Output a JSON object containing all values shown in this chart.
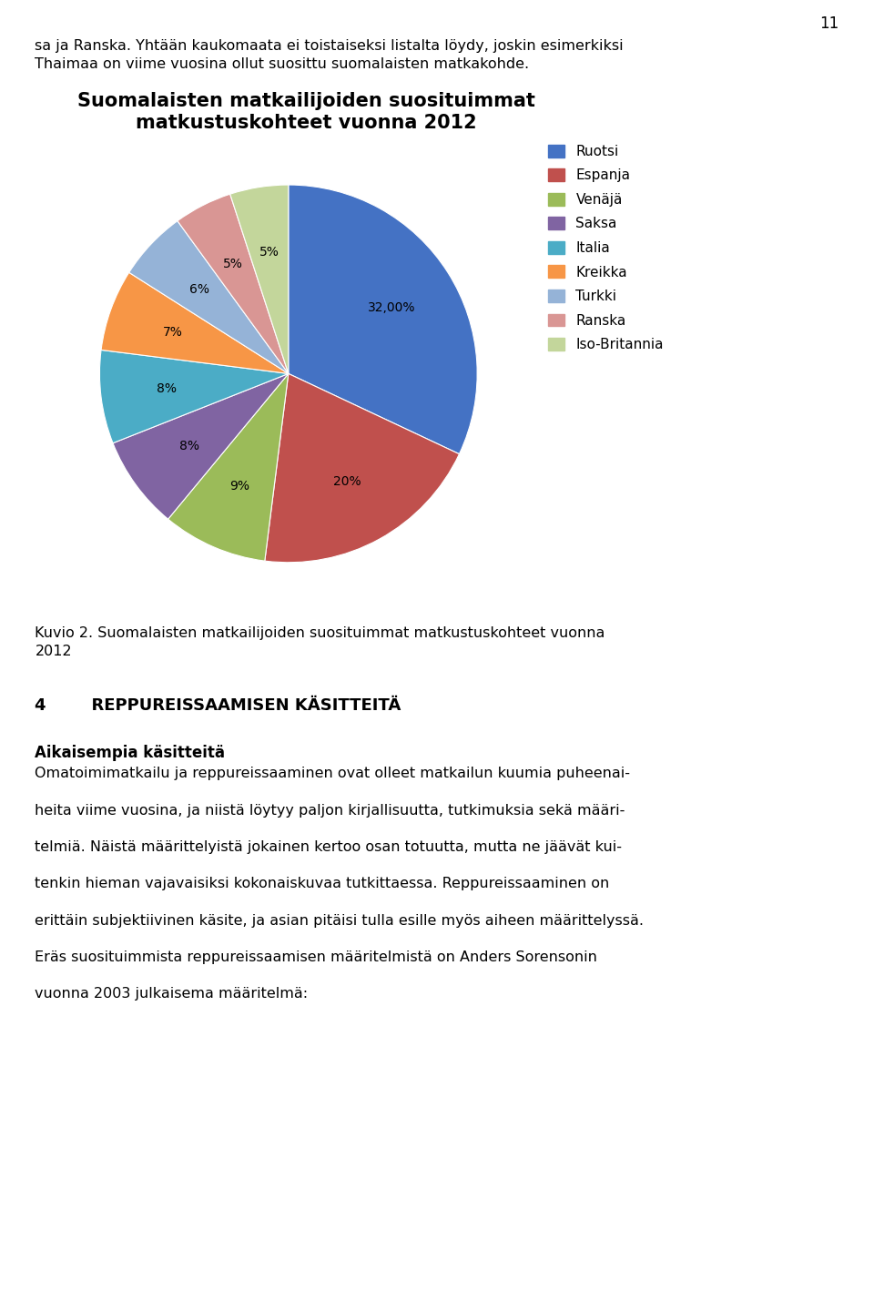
{
  "title_line1": "Suomalaisten matkailijoiden suosituimmat",
  "title_line2": "matkustuskohteet vuonna 2012",
  "labels": [
    "Ruotsi",
    "Espanja",
    "Venäjä",
    "Saksa",
    "Italia",
    "Kreikka",
    "Turkki",
    "Ranska",
    "Iso-Britannia"
  ],
  "values": [
    32,
    20,
    9,
    8,
    8,
    7,
    6,
    5,
    5
  ],
  "colors": [
    "#4472C4",
    "#C0504D",
    "#9BBB59",
    "#8064A2",
    "#4BACC6",
    "#F79646",
    "#95B3D7",
    "#D99694",
    "#C3D69B"
  ],
  "autopct_labels": [
    "32,00%",
    "20%",
    "9%",
    "8%",
    "8%",
    "7%",
    "6%",
    "5%",
    "5%"
  ],
  "background_color": "#ffffff",
  "page_number": "11",
  "top_text_line1": "sa ja Ranska. Yhtään kaukomaata ei toistaiseksi listalta löydy, joskin esimerkiksi",
  "top_text_line2": "Thaimaa on viime vuosina ollut suosittu suomalaisten matkakohde.",
  "caption_line1": "Kuvio 2. Suomalaisten matkailijoiden suosituimmat matkustuskohteet vuonna",
  "caption_line2": "2012",
  "section_heading": "4        REPPUREISSAAMISEN KÄSITTEITÄ",
  "subsection_heading": "Aikaisempia käsitteitä",
  "body_lines": [
    "Omatoimimatkailu ja reppureissaaminen ovat olleet matkailun kuumia puheenai-",
    "heita viime vuosina, ja niistä löytyy paljon kirjallisuutta, tutkimuksia sekä määri-",
    "telmiä. Näistä määrittelyistä jokainen kertoo osan totuutta, mutta ne jäävät kui-",
    "tenkin hieman vajavaisiksi kokonaiskuvaa tutkittaessa. Reppureissaaminen on",
    "erittäin subjektiivinen käsite, ja asian pitäisi tulla esille myös aiheen määrittelyssä.",
    "Eräs suosituimmista reppureissaamisen määritelmistä on Anders Sorensonin",
    "vuonna 2003 julkaisema määritelmä:"
  ]
}
